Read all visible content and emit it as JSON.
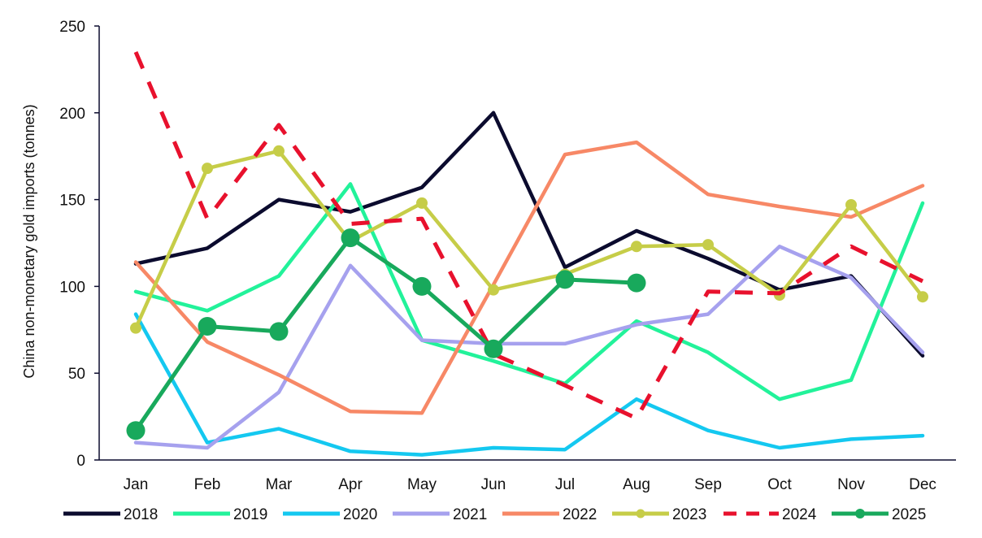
{
  "chart_data": {
    "type": "line",
    "title": "",
    "xlabel": "",
    "ylabel": "China non-monetary gold imports (tonnes)",
    "ylim": [
      0,
      250
    ],
    "yticks": [
      0,
      50,
      100,
      150,
      200,
      250
    ],
    "categories": [
      "Jan",
      "Feb",
      "Mar",
      "Apr",
      "May",
      "Jun",
      "Jul",
      "Aug",
      "Sep",
      "Oct",
      "Nov",
      "Dec"
    ],
    "grid": false,
    "legend_position": "bottom",
    "series": [
      {
        "name": "2018",
        "color": "#0b0b2e",
        "style": "solid",
        "markers": false,
        "values": [
          113,
          122,
          150,
          143,
          157,
          200,
          111,
          132,
          116,
          98,
          106,
          60
        ]
      },
      {
        "name": "2019",
        "color": "#22f29a",
        "style": "solid",
        "markers": false,
        "values": [
          97,
          86,
          106,
          159,
          69,
          57,
          44,
          80,
          62,
          35,
          46,
          148
        ]
      },
      {
        "name": "2020",
        "color": "#14c8f0",
        "style": "solid",
        "markers": false,
        "values": [
          84,
          10,
          18,
          5,
          3,
          7,
          6,
          35,
          17,
          7,
          12,
          14
        ]
      },
      {
        "name": "2021",
        "color": "#a6a1ee",
        "style": "solid",
        "markers": false,
        "values": [
          10,
          7,
          39,
          112,
          69,
          67,
          67,
          78,
          84,
          123,
          105,
          62
        ]
      },
      {
        "name": "2022",
        "color": "#f78866",
        "style": "solid",
        "markers": false,
        "values": [
          114,
          68,
          49,
          28,
          27,
          101,
          176,
          183,
          153,
          146,
          140,
          158
        ]
      },
      {
        "name": "2023",
        "color": "#c6cd48",
        "style": "solid",
        "markers": true,
        "values": [
          76,
          168,
          178,
          126,
          148,
          98,
          107,
          123,
          124,
          95,
          147,
          94
        ]
      },
      {
        "name": "2024",
        "color": "#e8112d",
        "style": "dashed",
        "markers": false,
        "values": [
          235,
          139,
          193,
          136,
          139,
          61,
          43,
          24,
          97,
          96,
          123,
          103
        ]
      },
      {
        "name": "2025",
        "color": "#18a95c",
        "style": "solid",
        "markers": true,
        "values": [
          17,
          77,
          74,
          128,
          100,
          64,
          104,
          102,
          null,
          null,
          null,
          null
        ]
      }
    ]
  }
}
